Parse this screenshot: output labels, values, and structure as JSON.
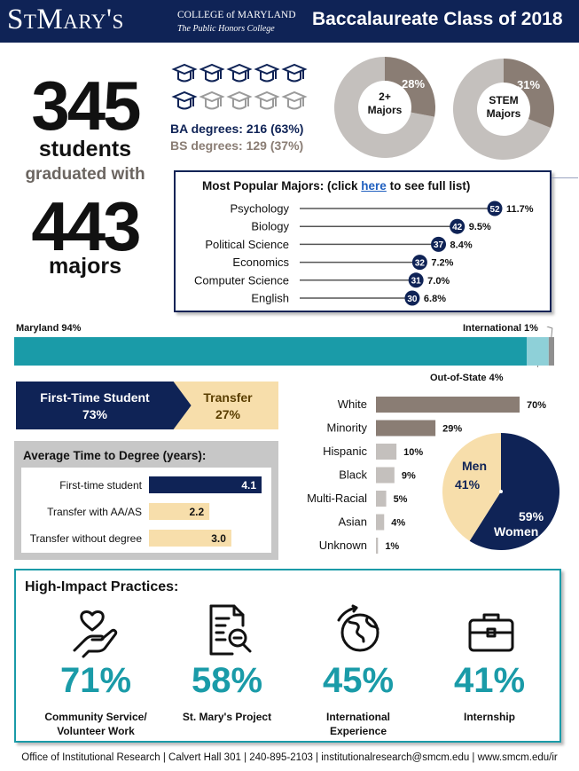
{
  "colors": {
    "navy": "#0f2356",
    "teal": "#1a9ba8",
    "lightteal": "#8ed0d8",
    "grey": "#8a7d74",
    "lightgrey": "#c4c0bd",
    "cream": "#f7deab",
    "bordergrey": "#c7c7c7"
  },
  "header": {
    "logo_main": "StMary's",
    "logo_college": "COLLEGE of MARYLAND",
    "logo_sub": "The Public Honors College",
    "title": "Baccalaureate Class of 2018"
  },
  "headline": {
    "students_num": "345",
    "students_label": "students",
    "graduated_with": "graduated with",
    "majors_num": "443",
    "majors_label": "majors"
  },
  "degrees": {
    "cap_icon": "graduation-cap-icon",
    "ba_text": "BA degrees: 216 (63%)",
    "bs_text": "BS degrees: 129 (37%)",
    "ba_share": 0.63
  },
  "donuts": [
    {
      "label_line1": "2+",
      "label_line2": "Majors",
      "pct_text": "28%",
      "value": 28
    },
    {
      "label_line1": "STEM",
      "label_line2": "Majors",
      "pct_text": "31%",
      "value": 31
    }
  ],
  "popular_majors": {
    "title_prefix": "Most Popular Majors: (click ",
    "title_link": "here",
    "title_suffix": " to see full list)",
    "items": [
      {
        "name": "Psychology",
        "count": "52",
        "pct": "11.7%",
        "value": 52
      },
      {
        "name": "Biology",
        "count": "42",
        "pct": "9.5%",
        "value": 42
      },
      {
        "name": "Political Science",
        "count": "37",
        "pct": "8.4%",
        "value": 37
      },
      {
        "name": "Economics",
        "count": "32",
        "pct": "7.2%",
        "value": 32
      },
      {
        "name": "Computer Science",
        "count": "31",
        "pct": "7.0%",
        "value": 31
      },
      {
        "name": "English",
        "count": "30",
        "pct": "6.8%",
        "value": 30
      }
    ]
  },
  "residency": {
    "maryland_label": "Maryland 94%",
    "international_label": "International 1%",
    "outofstate_label": "Out-of-State 4%",
    "values": [
      94,
      4,
      1
    ]
  },
  "student_type": {
    "first_line1": "First-Time Student",
    "first_line2": "73%",
    "transfer_line1": "Transfer",
    "transfer_line2": "27%"
  },
  "time_to_degree": {
    "title": "Average Time to Degree (years):",
    "max": 4.1,
    "rows": [
      {
        "label": "First-time student",
        "value_text": "4.1",
        "value": 4.1
      },
      {
        "label": "Transfer with AA/AS",
        "value_text": "2.2",
        "value": 2.2
      },
      {
        "label": "Transfer without degree",
        "value_text": "3.0",
        "value": 3.0
      }
    ]
  },
  "ethnicity": {
    "max": 70,
    "rows": [
      {
        "label": "White",
        "pct": "70%",
        "value": 70
      },
      {
        "label": "Minority",
        "pct": "29%",
        "value": 29
      },
      {
        "label": "Hispanic",
        "pct": "10%",
        "value": 10
      },
      {
        "label": "Black",
        "pct": "9%",
        "value": 9
      },
      {
        "label": "Multi-Racial",
        "pct": "5%",
        "value": 5
      },
      {
        "label": "Asian",
        "pct": "4%",
        "value": 4
      },
      {
        "label": "Unknown",
        "pct": "1%",
        "value": 1
      }
    ]
  },
  "gender": {
    "men_label": "Men",
    "men_pct": "41%",
    "women_pct": "59%",
    "women_label": "Women",
    "women_value": 59
  },
  "high_impact": {
    "title": "High-Impact Practices:",
    "items": [
      {
        "pct": "71%",
        "line1": "Community Service/",
        "line2": "Volunteer Work",
        "icon": "helping-hand-heart-icon"
      },
      {
        "pct": "58%",
        "line1": "St. Mary's Project",
        "line2": "",
        "icon": "document-magnifier-icon"
      },
      {
        "pct": "45%",
        "line1": "International",
        "line2": "Experience",
        "icon": "globe-icon"
      },
      {
        "pct": "41%",
        "line1": "Internship",
        "line2": "",
        "icon": "briefcase-icon"
      }
    ]
  },
  "footer": {
    "text": "Office of Institutional Research | Calvert Hall 301 | 240-895-2103 | institutionalresearch@smcm.edu | www.smcm.edu/ir"
  },
  "chart_data": [
    {
      "type": "pie",
      "title": "",
      "categories": [
        "2+ Majors",
        "Other"
      ],
      "values": [
        28,
        72
      ]
    },
    {
      "type": "pie",
      "title": "",
      "categories": [
        "STEM Majors",
        "Other"
      ],
      "values": [
        31,
        69
      ]
    },
    {
      "type": "bar",
      "title": "Most Popular Majors",
      "categories": [
        "Psychology",
        "Biology",
        "Political Science",
        "Economics",
        "Computer Science",
        "English"
      ],
      "values": [
        52,
        42,
        37,
        32,
        31,
        30
      ],
      "percents": [
        11.7,
        9.5,
        8.4,
        7.2,
        7.0,
        6.8
      ]
    },
    {
      "type": "bar",
      "title": "",
      "categories": [
        "Maryland",
        "Out-of-State",
        "International"
      ],
      "values": [
        94,
        4,
        1
      ]
    },
    {
      "type": "bar",
      "title": "",
      "categories": [
        "First-Time Student",
        "Transfer"
      ],
      "values": [
        73,
        27
      ]
    },
    {
      "type": "bar",
      "title": "Average Time to Degree (years):",
      "categories": [
        "First-time student",
        "Transfer with AA/AS",
        "Transfer without degree"
      ],
      "values": [
        4.1,
        2.2,
        3.0
      ]
    },
    {
      "type": "bar",
      "title": "",
      "categories": [
        "White",
        "Minority",
        "Hispanic",
        "Black",
        "Multi-Racial",
        "Asian",
        "Unknown"
      ],
      "values": [
        70,
        29,
        10,
        9,
        5,
        4,
        1
      ]
    },
    {
      "type": "pie",
      "title": "",
      "categories": [
        "Men",
        "Women"
      ],
      "values": [
        41,
        59
      ]
    },
    {
      "type": "bar",
      "title": "High-Impact Practices:",
      "categories": [
        "Community Service/Volunteer Work",
        "St. Mary's Project",
        "International Experience",
        "Internship"
      ],
      "values": [
        71,
        58,
        45,
        41
      ]
    }
  ]
}
